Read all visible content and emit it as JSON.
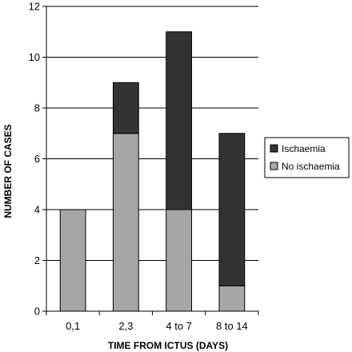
{
  "chart_data": {
    "type": "bar",
    "stacked": true,
    "title": "",
    "xlabel": "TIME FROM ICTUS (DAYS)",
    "ylabel": "NUMBER OF CASES",
    "categories": [
      "0,1",
      "2,3",
      "4 to 7",
      "8 to 14"
    ],
    "series": [
      {
        "name": "No ischaemia",
        "values": [
          4,
          7,
          4,
          1
        ],
        "color": "#a6a6a6"
      },
      {
        "name": "Ischaemia",
        "values": [
          0,
          2,
          7,
          6
        ],
        "color": "#333333"
      }
    ],
    "ylim": [
      0,
      12
    ],
    "yticks": [
      0,
      2,
      4,
      6,
      8,
      10,
      12
    ],
    "grid": true,
    "legend_placement": "right",
    "legend_order": [
      "Ischaemia",
      "No ischaemia"
    ]
  }
}
